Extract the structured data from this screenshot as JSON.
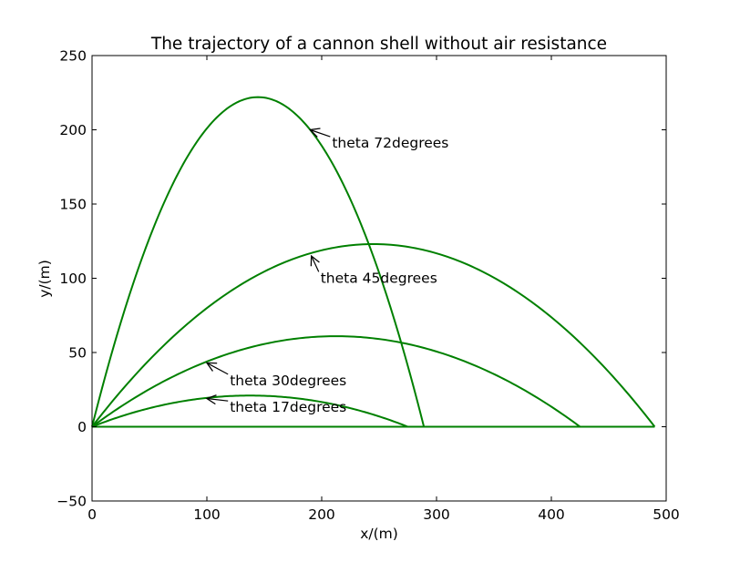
{
  "chart_data": {
    "type": "line",
    "title": "The trajectory of a cannon shell without air resistance",
    "xlabel": "x/(m)",
    "ylabel": "y/(m)",
    "xlim": [
      0,
      500
    ],
    "ylim": [
      -50,
      250
    ],
    "x_ticks": [
      0,
      100,
      200,
      300,
      400,
      500
    ],
    "y_ticks": [
      -50,
      0,
      50,
      100,
      150,
      200,
      250
    ],
    "x_tick_labels": [
      "0",
      "100",
      "200",
      "300",
      "400",
      "500"
    ],
    "y_tick_labels": [
      "−50",
      "0",
      "50",
      "100",
      "150",
      "200",
      "250"
    ],
    "grid": false,
    "line_color": "#008000",
    "series": [
      {
        "angle_deg": 17,
        "range": 275,
        "peak_x": 137,
        "peak_y": 21
      },
      {
        "angle_deg": 30,
        "range": 425,
        "peak_x": 212,
        "peak_y": 61
      },
      {
        "angle_deg": 45,
        "range": 490,
        "peak_x": 245,
        "peak_y": 123
      },
      {
        "angle_deg": 72,
        "range": 289,
        "peak_x": 144,
        "peak_y": 222
      }
    ],
    "annotations": [
      {
        "text": "theta 72degrees",
        "arrow_x": 190,
        "arrow_y": 200,
        "text_x": 209,
        "text_y": 188
      },
      {
        "text": "theta 45degrees",
        "arrow_x": 191,
        "arrow_y": 115,
        "text_x": 199,
        "text_y": 97
      },
      {
        "text": "theta 30degrees",
        "arrow_x": 100,
        "arrow_y": 43,
        "text_x": 120,
        "text_y": 28
      },
      {
        "text": "theta 17degrees",
        "arrow_x": 100,
        "arrow_y": 19,
        "text_x": 120,
        "text_y": 10
      }
    ]
  }
}
